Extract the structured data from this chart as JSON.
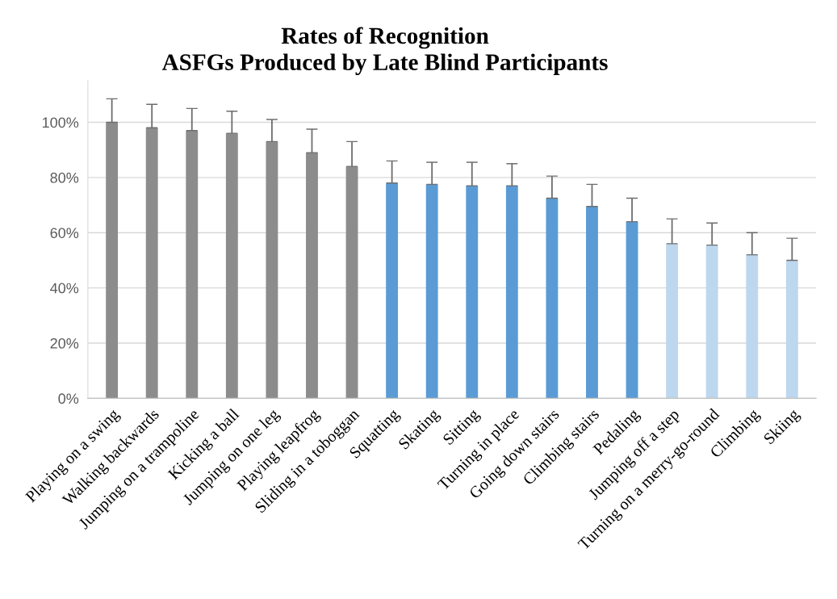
{
  "chart_data": {
    "type": "bar",
    "title": "Rates of Recognition\nASFGs Produced by Late Blind Participants",
    "categories": [
      "Playing on a swing",
      "Walking backwards",
      "Jumping on a trampoline",
      "Kicking a ball",
      "Jumping on one leg",
      "Playing leapfrog",
      "Sliding in a toboggan",
      "Squatting",
      "Skating",
      "Sitting",
      "Turning in place",
      "Going down stairs",
      "Climbing stairs",
      "Pedaling",
      "Jumping off a step",
      "Turning on a merry-go-round",
      "Climbing",
      "Skiing"
    ],
    "values": [
      100,
      98,
      97,
      96,
      93,
      89,
      84,
      78,
      77.5,
      77,
      77,
      72.5,
      69.5,
      64,
      56,
      55.5,
      52,
      50
    ],
    "colors": [
      "#8c8c8c",
      "#8c8c8c",
      "#8c8c8c",
      "#8c8c8c",
      "#8c8c8c",
      "#8c8c8c",
      "#8c8c8c",
      "#5b9bd5",
      "#5b9bd5",
      "#5b9bd5",
      "#5b9bd5",
      "#5b9bd5",
      "#5b9bd5",
      "#5b9bd5",
      "#bdd7ee",
      "#bdd7ee",
      "#bdd7ee",
      "#bdd7ee"
    ],
    "errors": [
      [
        100,
        108.5
      ],
      [
        98,
        106.5
      ],
      [
        97,
        105
      ],
      [
        96,
        104
      ],
      [
        93,
        101
      ],
      [
        89,
        97.5
      ],
      [
        84,
        93
      ],
      [
        78,
        86
      ],
      [
        77.5,
        85.5
      ],
      [
        77,
        85.5
      ],
      [
        77,
        85
      ],
      [
        72.5,
        80.5
      ],
      [
        69.5,
        77.5
      ],
      [
        64,
        72.5
      ],
      [
        56,
        65
      ],
      [
        55.5,
        63.5
      ],
      [
        52,
        60
      ],
      [
        50,
        58
      ]
    ],
    "ylim": [
      0,
      115
    ],
    "yticks": [
      {
        "value": 0,
        "label": "0%"
      },
      {
        "value": 20,
        "label": "20%"
      },
      {
        "value": 40,
        "label": "40%"
      },
      {
        "value": 60,
        "label": "60%"
      },
      {
        "value": 80,
        "label": "80%"
      },
      {
        "value": 100,
        "label": "100%"
      }
    ],
    "grid": "y"
  }
}
